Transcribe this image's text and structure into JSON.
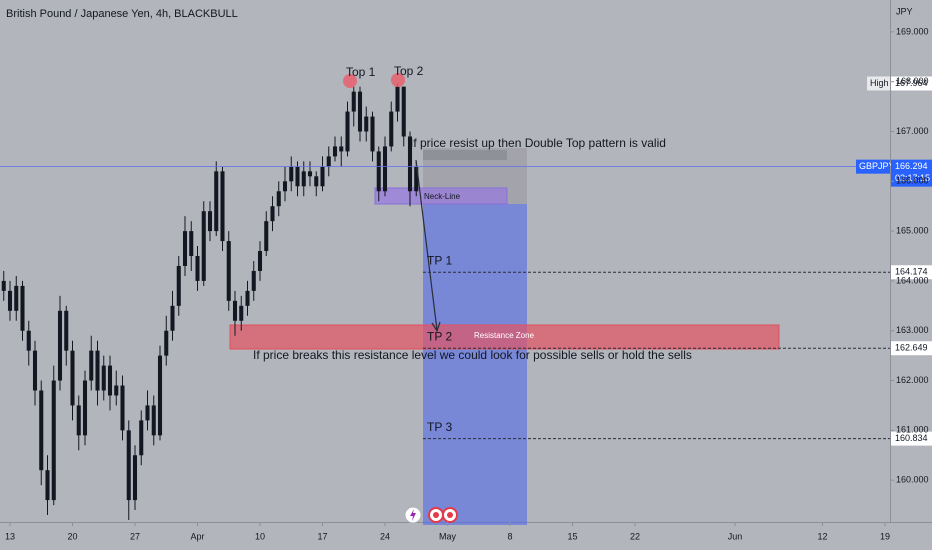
{
  "chart_data": {
    "type": "candlestick",
    "title": "British Pound / Japanese Yen, 4h, BLACKBULL",
    "currency": "JPY",
    "color": "#131722",
    "x": [
      -0.5,
      0,
      0.5,
      1,
      1.5,
      2,
      2.5,
      3,
      3.5,
      4,
      4.5,
      5,
      5.5,
      6,
      6.5,
      7,
      7.5,
      8,
      8.5,
      9,
      9.5,
      10,
      10.5,
      11,
      11.5,
      12,
      12.5,
      13,
      13.5,
      14,
      14.5,
      15,
      15.5,
      16,
      16.5,
      17,
      17.5,
      18,
      18.5,
      19,
      19.5,
      20,
      20.5,
      21,
      21.5,
      22,
      22.5,
      23,
      23.5,
      24,
      24.5,
      25,
      25.5,
      26,
      26.5,
      27,
      27.5,
      28,
      28.5,
      29,
      29.5,
      30,
      30.5,
      31,
      31.5,
      32,
      32.5
    ],
    "open": [
      164.0,
      163.8,
      163.4,
      163.9,
      163.0,
      162.6,
      161.8,
      160.2,
      159.6,
      162.0,
      163.4,
      162.6,
      161.5,
      160.9,
      162.0,
      162.6,
      161.8,
      162.3,
      161.7,
      161.9,
      161.0,
      159.6,
      160.5,
      161.2,
      161.5,
      160.9,
      162.5,
      163.0,
      163.5,
      164.3,
      165.0,
      164.5,
      164.0,
      165.4,
      165.0,
      166.2,
      164.8,
      163.6,
      163.2,
      163.5,
      163.8,
      164.2,
      164.6,
      165.2,
      165.5,
      165.8,
      166.0,
      166.3,
      165.9,
      166.2,
      166.1,
      165.9,
      166.3,
      166.5,
      166.7,
      166.6,
      167.4,
      167.8,
      167.0,
      167.3,
      166.6,
      165.8,
      166.7,
      167.4,
      167.9,
      166.9,
      165.8
    ],
    "high": [
      164.2,
      164.0,
      164.1,
      164.0,
      163.2,
      162.8,
      162.0,
      160.5,
      162.3,
      163.7,
      163.5,
      162.8,
      161.7,
      162.2,
      162.9,
      162.8,
      162.5,
      162.5,
      162.2,
      162.1,
      161.2,
      160.7,
      161.4,
      161.8,
      161.7,
      162.7,
      163.3,
      163.8,
      164.5,
      165.3,
      165.2,
      164.7,
      165.6,
      165.6,
      166.4,
      166.3,
      165.0,
      163.8,
      163.7,
      164.0,
      164.4,
      164.8,
      165.4,
      165.7,
      166.0,
      166.3,
      166.5,
      166.4,
      166.4,
      166.4,
      166.2,
      166.5,
      166.7,
      166.9,
      166.9,
      167.6,
      167.9,
      167.9,
      167.5,
      167.4,
      166.7,
      166.9,
      167.6,
      167.964,
      167.9,
      167.0,
      166.4
    ],
    "low": [
      163.6,
      163.2,
      163.2,
      162.8,
      162.3,
      161.5,
      159.9,
      159.3,
      159.5,
      161.8,
      162.3,
      161.2,
      160.6,
      160.7,
      161.8,
      161.5,
      161.6,
      161.4,
      161.5,
      160.8,
      159.2,
      159.4,
      160.3,
      161.0,
      160.7,
      160.8,
      162.3,
      162.8,
      163.3,
      164.1,
      164.2,
      163.8,
      163.9,
      164.8,
      164.9,
      164.6,
      163.4,
      162.9,
      163.0,
      163.3,
      163.6,
      164.0,
      164.5,
      165.0,
      165.3,
      165.6,
      165.8,
      165.7,
      165.7,
      165.9,
      165.7,
      165.8,
      166.1,
      166.4,
      166.3,
      166.5,
      167.1,
      166.8,
      166.8,
      166.4,
      165.6,
      165.7,
      166.6,
      167.2,
      166.7,
      165.5,
      165.7
    ],
    "close": [
      163.8,
      163.4,
      163.9,
      163.0,
      162.6,
      161.8,
      160.2,
      159.6,
      162.0,
      163.4,
      162.6,
      161.5,
      160.9,
      162.0,
      162.6,
      161.8,
      162.3,
      161.7,
      161.9,
      161.0,
      159.6,
      160.5,
      161.2,
      161.5,
      160.9,
      162.5,
      163.0,
      163.5,
      164.3,
      165.0,
      164.5,
      164.0,
      165.4,
      165.0,
      166.2,
      164.8,
      163.6,
      163.2,
      163.5,
      163.8,
      164.2,
      164.6,
      165.2,
      165.5,
      165.8,
      166.0,
      166.3,
      165.9,
      166.2,
      166.1,
      165.9,
      166.3,
      166.5,
      166.7,
      166.6,
      167.4,
      167.8,
      167.0,
      167.3,
      166.6,
      165.8,
      166.7,
      167.4,
      167.9,
      166.9,
      165.8,
      166.29
    ],
    "xlim": [
      -0.8,
      70.4
    ],
    "ylim": [
      159.16,
      169.64
    ],
    "xticks": [
      {
        "value": 0,
        "label": "13"
      },
      {
        "value": 5,
        "label": "20"
      },
      {
        "value": 10,
        "label": "27"
      },
      {
        "value": 15,
        "label": "Apr"
      },
      {
        "value": 20,
        "label": "10"
      },
      {
        "value": 25,
        "label": "17"
      },
      {
        "value": 30,
        "label": "24"
      },
      {
        "value": 35,
        "label": "May"
      },
      {
        "value": 40,
        "label": "8"
      },
      {
        "value": 45,
        "label": "15"
      },
      {
        "value": 50,
        "label": "22"
      },
      {
        "value": 58,
        "label": "Jun"
      },
      {
        "value": 65,
        "label": "12"
      },
      {
        "value": 70,
        "label": "19"
      }
    ],
    "yticks": [
      {
        "value": 160,
        "label": "160.000"
      },
      {
        "value": 161,
        "label": "161.000"
      },
      {
        "value": 162,
        "label": "162.000"
      },
      {
        "value": 163,
        "label": "163.000"
      },
      {
        "value": 164,
        "label": "164.000"
      },
      {
        "value": 165,
        "label": "165.000"
      },
      {
        "value": 166,
        "label": "166.000"
      },
      {
        "value": 167,
        "label": "167.000"
      },
      {
        "value": 168,
        "label": "168.000"
      },
      {
        "value": 169,
        "label": "169.000"
      }
    ],
    "last": {
      "symbol": "GBPJPY",
      "value": 166.294,
      "countdown": "02:17:15"
    },
    "high_marker": {
      "label": "High",
      "value": 167.964
    },
    "targets": [
      {
        "name": "TP 1",
        "value": 164.174
      },
      {
        "name": "TP 2",
        "value": 162.649
      },
      {
        "name": "TP 3",
        "value": 160.834
      }
    ],
    "annotations": {
      "top1": "Top 1",
      "top2": "Top 2",
      "note_top": "If price resist up then Double Top pattern is valid",
      "neck_line": "Neck-Line",
      "resistance": "Resistance Zone",
      "note_bottom": "If price breaks this resistance level we could look for possible sells or hold the sells"
    }
  }
}
